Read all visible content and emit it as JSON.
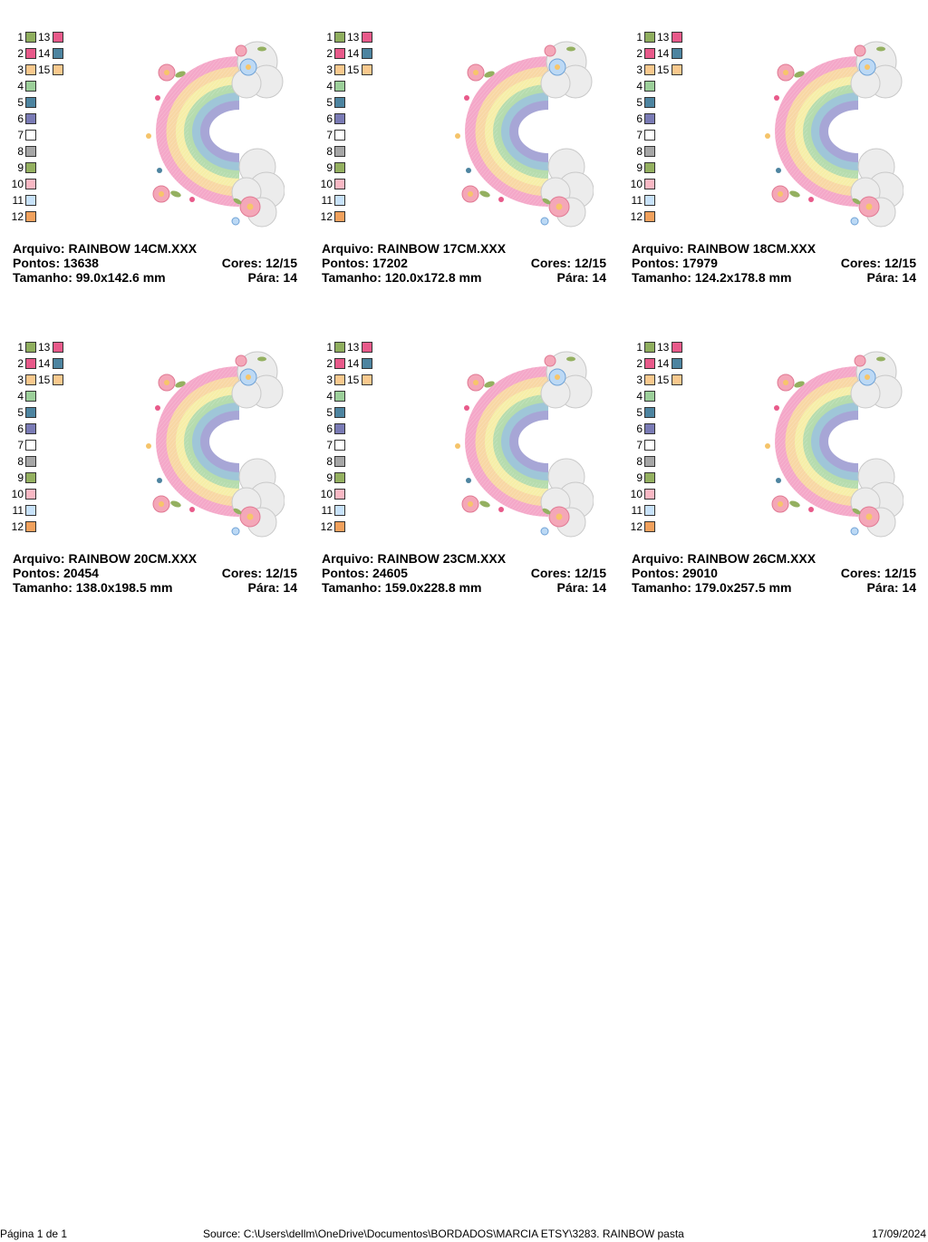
{
  "palette_colors": [
    "#8fae5e",
    "#e85a8a",
    "#f9c98e",
    "#9ccf9a",
    "#4d84a0",
    "#7a7bb5",
    "#ffffff",
    "#a6a6a6",
    "#94b060",
    "#f9b8c4",
    "#c8e2fa",
    "#f1a15d",
    "#e85a8a",
    "#4d84a0",
    "#f9c98e"
  ],
  "palette_numbers": [
    "1",
    "2",
    "3",
    "4",
    "5",
    "6",
    "7",
    "8",
    "9",
    "10",
    "11",
    "12"
  ],
  "palette_numbers_right": [
    "13",
    "14",
    "15"
  ],
  "designs": [
    {
      "arquivo_label": "Arquivo:",
      "arquivo": "RAINBOW 14CM.XXX",
      "pontos_label": "Pontos:",
      "pontos": "13638",
      "cores_label": "Cores:",
      "cores": "12/15",
      "tamanho_label": "Tamanho:",
      "tamanho": "99.0x142.6 mm",
      "para_label": "Pára:",
      "para": "14"
    },
    {
      "arquivo_label": "Arquivo:",
      "arquivo": "RAINBOW 17CM.XXX",
      "pontos_label": "Pontos:",
      "pontos": "17202",
      "cores_label": "Cores:",
      "cores": "12/15",
      "tamanho_label": "Tamanho:",
      "tamanho": "120.0x172.8 mm",
      "para_label": "Pára:",
      "para": "14"
    },
    {
      "arquivo_label": "Arquivo:",
      "arquivo": "RAINBOW 18CM.XXX",
      "pontos_label": "Pontos:",
      "pontos": "17979",
      "cores_label": "Cores:",
      "cores": "12/15",
      "tamanho_label": "Tamanho:",
      "tamanho": "124.2x178.8 mm",
      "para_label": "Pára:",
      "para": "14"
    },
    {
      "arquivo_label": "Arquivo:",
      "arquivo": "RAINBOW 20CM.XXX",
      "pontos_label": "Pontos:",
      "pontos": "20454",
      "cores_label": "Cores:",
      "cores": "12/15",
      "tamanho_label": "Tamanho:",
      "tamanho": "138.0x198.5 mm",
      "para_label": "Pára:",
      "para": "14"
    },
    {
      "arquivo_label": "Arquivo:",
      "arquivo": "RAINBOW 23CM.XXX",
      "pontos_label": "Pontos:",
      "pontos": "24605",
      "cores_label": "Cores:",
      "cores": "12/15",
      "tamanho_label": "Tamanho:",
      "tamanho": "159.0x228.8 mm",
      "para_label": "Pára:",
      "para": "14"
    },
    {
      "arquivo_label": "Arquivo:",
      "arquivo": "RAINBOW 26CM.XXX",
      "pontos_label": "Pontos:",
      "pontos": "29010",
      "cores_label": "Cores:",
      "cores": "12/15",
      "tamanho_label": "Tamanho:",
      "tamanho": "179.0x257.5 mm",
      "para_label": "Pára:",
      "para": "14"
    }
  ],
  "footer": {
    "page": "Página 1 de 1",
    "source": "Source: C:\\Users\\dellm\\OneDrive\\Documentos\\BORDADOS\\MARCIA ETSY\\3283. RAINBOW pasta",
    "date": "17/09/2024"
  }
}
